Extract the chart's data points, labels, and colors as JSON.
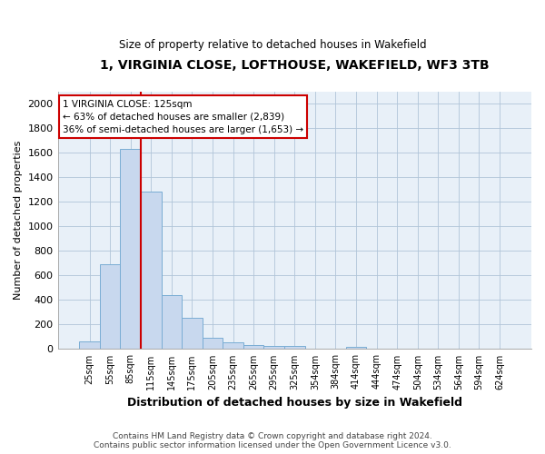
{
  "title": "1, VIRGINIA CLOSE, LOFTHOUSE, WAKEFIELD, WF3 3TB",
  "subtitle": "Size of property relative to detached houses in Wakefield",
  "xlabel": "Distribution of detached houses by size in Wakefield",
  "ylabel": "Number of detached properties",
  "bar_color": "#c8d8ee",
  "bar_edge_color": "#7aadd4",
  "plot_bg_color": "#e8f0f8",
  "background_color": "#ffffff",
  "grid_color": "#b0c4d8",
  "annotation_line_color": "#cc0000",
  "annotation_text_line1": "1 VIRGINIA CLOSE: 125sqm",
  "annotation_text_line2": "← 63% of detached houses are smaller (2,839)",
  "annotation_text_line3": "36% of semi-detached houses are larger (1,653) →",
  "footnote_line1": "Contains HM Land Registry data © Crown copyright and database right 2024.",
  "footnote_line2": "Contains public sector information licensed under the Open Government Licence v3.0.",
  "bin_labels": [
    "25sqm",
    "55sqm",
    "85sqm",
    "115sqm",
    "145sqm",
    "175sqm",
    "205sqm",
    "235sqm",
    "265sqm",
    "295sqm",
    "325sqm",
    "354sqm",
    "384sqm",
    "414sqm",
    "444sqm",
    "474sqm",
    "504sqm",
    "534sqm",
    "564sqm",
    "594sqm",
    "624sqm"
  ],
  "bin_values": [
    65,
    695,
    1635,
    1285,
    440,
    253,
    90,
    55,
    35,
    28,
    25,
    0,
    0,
    15,
    0,
    0,
    0,
    0,
    0,
    0,
    0
  ],
  "ylim": [
    0,
    2100
  ],
  "yticks": [
    0,
    200,
    400,
    600,
    800,
    1000,
    1200,
    1400,
    1600,
    1800,
    2000
  ],
  "red_line_x": 2.5,
  "figsize": [
    6.0,
    5.0
  ],
  "dpi": 100
}
